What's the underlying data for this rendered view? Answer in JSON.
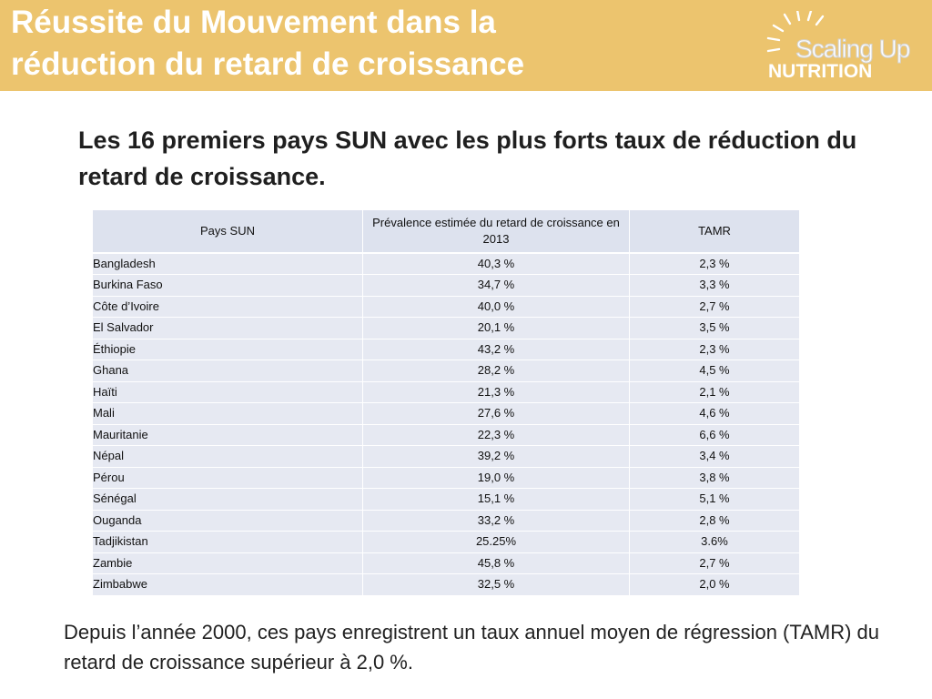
{
  "header": {
    "title_line1": "Réussite du Mouvement dans la",
    "title_line2": "réduction du retard de croissance",
    "background_color": "#ecc46e"
  },
  "logo": {
    "line1": "Scaling Up",
    "line2": "NUTRITION"
  },
  "subtitle": "Les 16 premiers pays SUN avec les plus forts taux de réduction du retard de croissance.",
  "table": {
    "headers": {
      "country": "Pays SUN",
      "prevalence": "Prévalence estimée du retard de croissance en 2013",
      "tamr": "TAMR"
    },
    "rows": [
      {
        "country": "Bangladesh",
        "prevalence": "40,3 %",
        "tamr": "2,3 %"
      },
      {
        "country": "Burkina Faso",
        "prevalence": "34,7 %",
        "tamr": "3,3 %"
      },
      {
        "country": "Côte d’Ivoire",
        "prevalence": "40,0 %",
        "tamr": "2,7 %"
      },
      {
        "country": "El Salvador",
        "prevalence": "20,1 %",
        "tamr": "3,5 %"
      },
      {
        "country": "Éthiopie",
        "prevalence": "43,2 %",
        "tamr": "2,3 %"
      },
      {
        "country": "Ghana",
        "prevalence": "28,2 %",
        "tamr": "4,5 %"
      },
      {
        "country": "Haïti",
        "prevalence": "21,3 %",
        "tamr": "2,1 %"
      },
      {
        "country": "Mali",
        "prevalence": "27,6 %",
        "tamr": "4,6 %"
      },
      {
        "country": "Mauritanie",
        "prevalence": "22,3 %",
        "tamr": "6,6 %"
      },
      {
        "country": "Népal",
        "prevalence": "39,2 %",
        "tamr": "3,4 %"
      },
      {
        "country": "Pérou",
        "prevalence": "19,0 %",
        "tamr": "3,8 %"
      },
      {
        "country": "Sénégal",
        "prevalence": "15,1 %",
        "tamr": "5,1 %"
      },
      {
        "country": "Ouganda",
        "prevalence": "33,2 %",
        "tamr": "2,8 %"
      },
      {
        "country": "Tadjikistan",
        "prevalence": "25.25%",
        "tamr": "3.6%"
      },
      {
        "country": "Zambie",
        "prevalence": "45,8 %",
        "tamr": "2,7 %"
      },
      {
        "country": "Zimbabwe",
        "prevalence": "32,5 %",
        "tamr": "2,0 %"
      }
    ]
  },
  "footer": "Depuis l’année 2000, ces pays enregistrent un taux annuel moyen de régression (TAMR) du retard de croissance supérieur à 2,0 %."
}
